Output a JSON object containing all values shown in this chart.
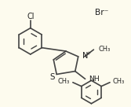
{
  "bg_color": "#fdfbee",
  "line_color": "#444444",
  "text_color": "#222222",
  "lw": 1.2,
  "font_size": 7.0,
  "cl_label": "Cl",
  "br_label": "Br⁻",
  "n_label": "N",
  "s_label": "S",
  "nh_label": "NH",
  "plus_label": "+",
  "me_label": "CH₃",
  "me2_label": "CH₃"
}
